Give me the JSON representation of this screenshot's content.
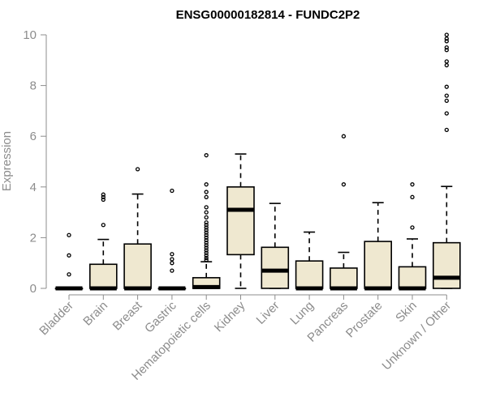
{
  "chart_data": {
    "type": "boxplot",
    "title": "ENSG00000182814 - FUNDC2P2",
    "xlabel": "",
    "ylabel": "Expression",
    "ylim": [
      0,
      10
    ],
    "yticks": [
      0,
      2,
      4,
      6,
      8,
      10
    ],
    "grid": false,
    "categories": [
      "Bladder",
      "Brain",
      "Breast",
      "Gastric",
      "Hematopoietic cells",
      "Kidney",
      "Liver",
      "Lung",
      "Pancreas",
      "Prostate",
      "Skin",
      "Unknown / Other"
    ],
    "boxes": [
      {
        "category": "Bladder",
        "whisker_low": 0,
        "q1": 0,
        "median": 0,
        "q3": 0,
        "whisker_high": 0,
        "outliers": [
          0.55,
          1.3,
          2.1
        ]
      },
      {
        "category": "Brain",
        "whisker_low": 0,
        "q1": 0,
        "median": 0,
        "q3": 0.95,
        "whisker_high": 1.93,
        "outliers": [
          2.5,
          3.5,
          3.6,
          3.7
        ]
      },
      {
        "category": "Breast",
        "whisker_low": 0,
        "q1": 0,
        "median": 0,
        "q3": 1.75,
        "whisker_high": 3.72,
        "outliers": [
          4.7
        ]
      },
      {
        "category": "Gastric",
        "whisker_low": 0,
        "q1": 0,
        "median": 0,
        "q3": 0,
        "whisker_high": 0,
        "outliers": [
          0.7,
          1.0,
          1.15,
          1.35,
          3.85
        ]
      },
      {
        "category": "Hematopoietic cells",
        "whisker_low": 0,
        "q1": 0,
        "median": 0.05,
        "q3": 0.42,
        "whisker_high": 1.05,
        "outliers": [
          1.12,
          1.2,
          1.3,
          1.4,
          1.5,
          1.6,
          1.7,
          1.8,
          1.9,
          2.0,
          2.1,
          2.2,
          2.3,
          2.4,
          2.5,
          2.6,
          2.8,
          3.0,
          3.2,
          3.6,
          3.8,
          4.1,
          5.25
        ]
      },
      {
        "category": "Kidney",
        "whisker_low": 0,
        "q1": 1.33,
        "median": 3.1,
        "q3": 4.0,
        "whisker_high": 5.3,
        "outliers": []
      },
      {
        "category": "Liver",
        "whisker_low": 0,
        "q1": 0,
        "median": 0.7,
        "q3": 1.62,
        "whisker_high": 3.35,
        "outliers": []
      },
      {
        "category": "Lung",
        "whisker_low": 0,
        "q1": 0,
        "median": 0,
        "q3": 1.08,
        "whisker_high": 2.22,
        "outliers": []
      },
      {
        "category": "Pancreas",
        "whisker_low": 0,
        "q1": 0,
        "median": 0,
        "q3": 0.8,
        "whisker_high": 1.42,
        "outliers": [
          4.1,
          6.0
        ]
      },
      {
        "category": "Prostate",
        "whisker_low": 0,
        "q1": 0,
        "median": 0,
        "q3": 1.85,
        "whisker_high": 3.38,
        "outliers": []
      },
      {
        "category": "Skin",
        "whisker_low": 0,
        "q1": 0,
        "median": 0,
        "q3": 0.85,
        "whisker_high": 1.95,
        "outliers": [
          2.4,
          3.6,
          4.1
        ]
      },
      {
        "category": "Unknown / Other",
        "whisker_low": 0,
        "q1": 0,
        "median": 0.42,
        "q3": 1.8,
        "whisker_high": 4.02,
        "outliers": [
          6.25,
          6.9,
          7.4,
          7.6,
          7.95,
          8.8,
          8.95,
          9.4,
          9.5,
          9.75,
          9.85,
          10.0
        ]
      }
    ]
  }
}
